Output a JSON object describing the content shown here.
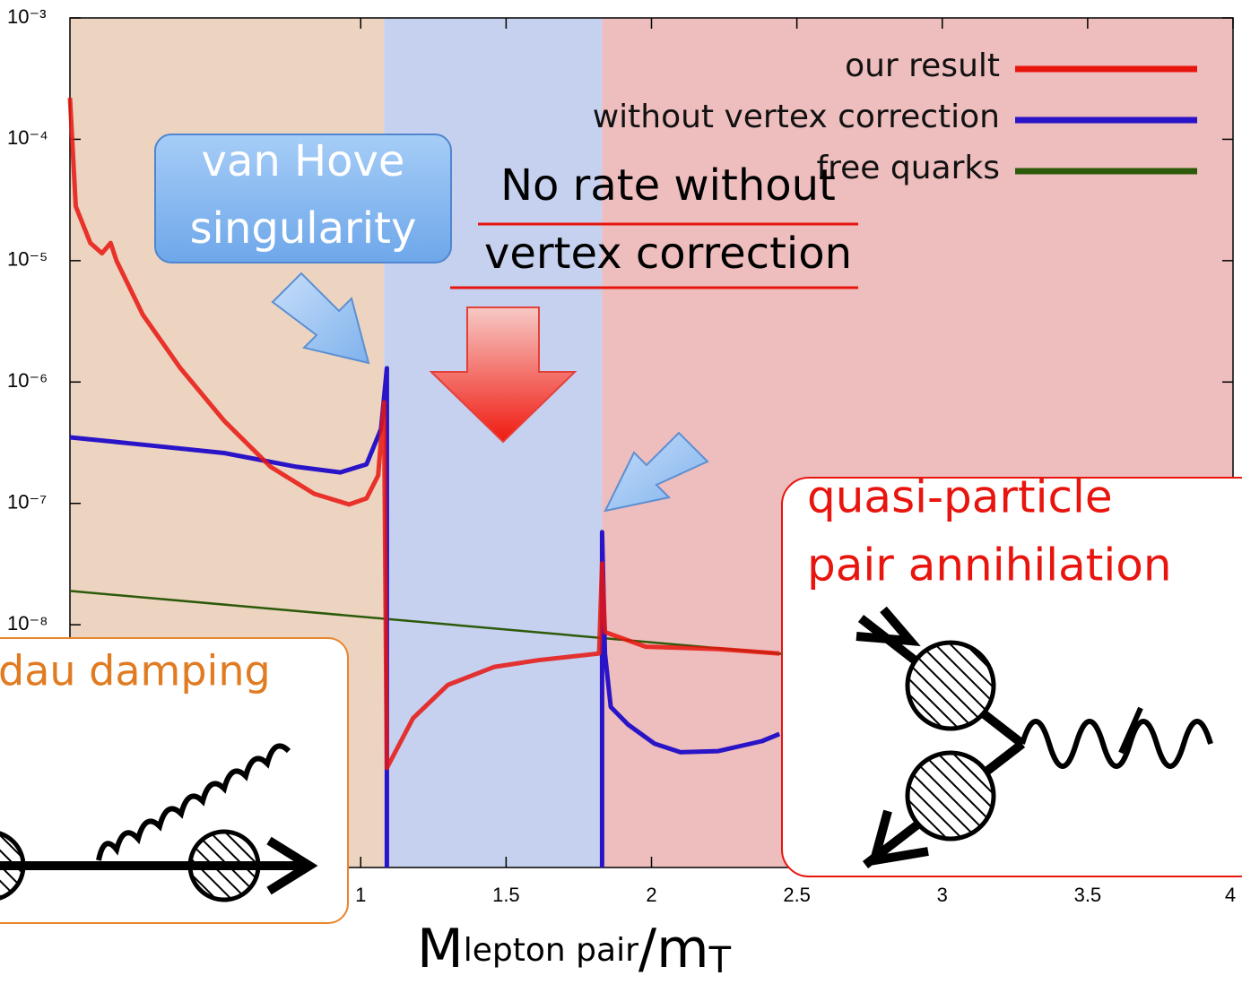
{
  "chart_data": {
    "type": "line",
    "log_y": true,
    "xlim": [
      0,
      4
    ],
    "ylim": [
      1e-10,
      0.001
    ],
    "xticks": [
      1,
      1.5,
      2,
      2.5,
      3,
      3.5,
      4
    ],
    "yticks": [
      {
        "value": 0.001,
        "label": "10⁻³"
      },
      {
        "value": 0.0001,
        "label": "10⁻⁴"
      },
      {
        "value": 1e-05,
        "label": "10⁻⁵"
      },
      {
        "value": 1e-06,
        "label": "10⁻⁶"
      },
      {
        "value": 1e-07,
        "label": "10⁻⁷"
      },
      {
        "value": 1e-08,
        "label": "10⁻⁸"
      }
    ],
    "xlabel": [
      "M",
      "lepton pair",
      "/m",
      "T"
    ],
    "legend": "upper right",
    "regions": [
      {
        "xlim": [
          0,
          1.08
        ],
        "color": "#ecd4c1"
      },
      {
        "xlim": [
          1.08,
          1.83
        ],
        "color": "#c5d1ee"
      },
      {
        "xlim": [
          1.83,
          4
        ],
        "color": "#eebdbd"
      }
    ],
    "series": [
      {
        "name": "our result",
        "color": "#e8150f",
        "x": [
          0,
          0.02,
          0.07,
          0.11,
          0.14,
          0.16,
          0.25,
          0.38,
          0.53,
          0.69,
          0.84,
          0.96,
          1.02,
          1.06,
          1.08,
          1.09,
          1.18,
          1.3,
          1.46,
          1.61,
          1.82,
          1.83,
          1.84,
          1.98,
          2.23,
          2.44
        ],
        "values": [
          0.00022,
          2.8e-05,
          1.4e-05,
          1.15e-05,
          1.4e-05,
          1e-05,
          3.6e-06,
          1.3e-06,
          4.8e-07,
          2e-07,
          1.2e-07,
          9.8e-08,
          1.1e-07,
          1.7e-07,
          6.8e-07,
          6.6e-10,
          1.7e-09,
          3.2e-09,
          4.5e-09,
          5.1e-09,
          5.8e-09,
          3.2e-08,
          8.7e-09,
          6.6e-09,
          6.3e-09,
          5.8e-09
        ]
      },
      {
        "name": "without vertex correction",
        "color": "#2a14c8",
        "x": [
          0,
          0.22,
          0.53,
          0.78,
          0.93,
          1.02,
          1.07,
          1.09,
          1.09,
          null,
          1.83,
          1.83,
          1.84,
          1.86,
          1.92,
          2.01,
          2.1,
          2.23,
          2.38,
          2.44
        ],
        "values": [
          3.5e-07,
          3.1e-07,
          2.6e-07,
          2e-07,
          1.8e-07,
          2.1e-07,
          4.1e-07,
          1.3e-06,
          1e-10,
          null,
          1e-10,
          5.8e-08,
          5.8e-09,
          2.1e-09,
          1.5e-09,
          1.05e-09,
          8.9e-10,
          9.1e-10,
          1.1e-09,
          1.26e-09
        ]
      },
      {
        "name": "free quarks",
        "color": "#2d5a0a",
        "x": [
          0,
          4
        ],
        "values": [
          1.9e-08,
          2.7e-09
        ]
      }
    ],
    "annotations": [
      {
        "lines": [
          "van Hove",
          "singularity"
        ]
      },
      {
        "lines": [
          "No rate without",
          "vertex correction"
        ]
      },
      {
        "lines": [
          "quasi-particle",
          "pair annihilation"
        ]
      },
      {
        "lines": [
          "dau damping"
        ]
      }
    ]
  }
}
